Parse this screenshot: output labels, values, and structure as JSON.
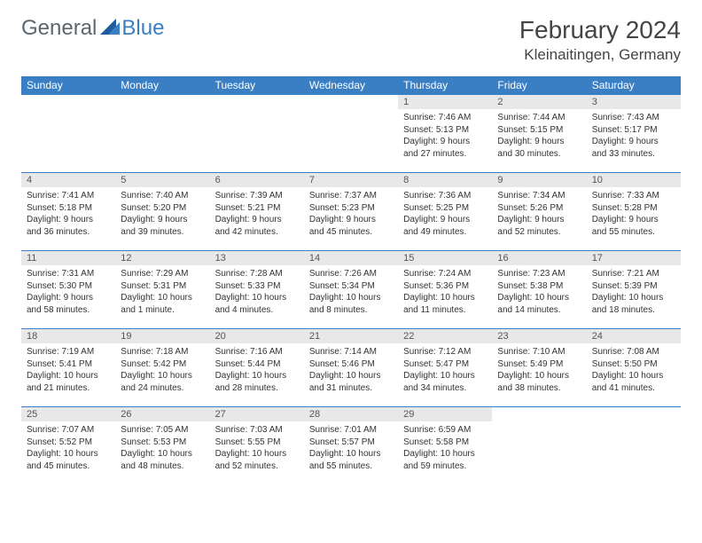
{
  "logo": {
    "text1": "General",
    "text2": "Blue"
  },
  "title": "February 2024",
  "location": "Kleinaitingen, Germany",
  "colors": {
    "header_bg": "#3a7fc4",
    "header_text": "#ffffff",
    "daynum_bg": "#e8e8e8",
    "border": "#3a7fc4",
    "logo_gray": "#5a6670",
    "logo_blue": "#3a7fc4"
  },
  "day_labels": [
    "Sunday",
    "Monday",
    "Tuesday",
    "Wednesday",
    "Thursday",
    "Friday",
    "Saturday"
  ],
  "weeks": [
    [
      {
        "num": "",
        "lines": []
      },
      {
        "num": "",
        "lines": []
      },
      {
        "num": "",
        "lines": []
      },
      {
        "num": "",
        "lines": []
      },
      {
        "num": "1",
        "lines": [
          "Sunrise: 7:46 AM",
          "Sunset: 5:13 PM",
          "Daylight: 9 hours",
          "and 27 minutes."
        ]
      },
      {
        "num": "2",
        "lines": [
          "Sunrise: 7:44 AM",
          "Sunset: 5:15 PM",
          "Daylight: 9 hours",
          "and 30 minutes."
        ]
      },
      {
        "num": "3",
        "lines": [
          "Sunrise: 7:43 AM",
          "Sunset: 5:17 PM",
          "Daylight: 9 hours",
          "and 33 minutes."
        ]
      }
    ],
    [
      {
        "num": "4",
        "lines": [
          "Sunrise: 7:41 AM",
          "Sunset: 5:18 PM",
          "Daylight: 9 hours",
          "and 36 minutes."
        ]
      },
      {
        "num": "5",
        "lines": [
          "Sunrise: 7:40 AM",
          "Sunset: 5:20 PM",
          "Daylight: 9 hours",
          "and 39 minutes."
        ]
      },
      {
        "num": "6",
        "lines": [
          "Sunrise: 7:39 AM",
          "Sunset: 5:21 PM",
          "Daylight: 9 hours",
          "and 42 minutes."
        ]
      },
      {
        "num": "7",
        "lines": [
          "Sunrise: 7:37 AM",
          "Sunset: 5:23 PM",
          "Daylight: 9 hours",
          "and 45 minutes."
        ]
      },
      {
        "num": "8",
        "lines": [
          "Sunrise: 7:36 AM",
          "Sunset: 5:25 PM",
          "Daylight: 9 hours",
          "and 49 minutes."
        ]
      },
      {
        "num": "9",
        "lines": [
          "Sunrise: 7:34 AM",
          "Sunset: 5:26 PM",
          "Daylight: 9 hours",
          "and 52 minutes."
        ]
      },
      {
        "num": "10",
        "lines": [
          "Sunrise: 7:33 AM",
          "Sunset: 5:28 PM",
          "Daylight: 9 hours",
          "and 55 minutes."
        ]
      }
    ],
    [
      {
        "num": "11",
        "lines": [
          "Sunrise: 7:31 AM",
          "Sunset: 5:30 PM",
          "Daylight: 9 hours",
          "and 58 minutes."
        ]
      },
      {
        "num": "12",
        "lines": [
          "Sunrise: 7:29 AM",
          "Sunset: 5:31 PM",
          "Daylight: 10 hours",
          "and 1 minute."
        ]
      },
      {
        "num": "13",
        "lines": [
          "Sunrise: 7:28 AM",
          "Sunset: 5:33 PM",
          "Daylight: 10 hours",
          "and 4 minutes."
        ]
      },
      {
        "num": "14",
        "lines": [
          "Sunrise: 7:26 AM",
          "Sunset: 5:34 PM",
          "Daylight: 10 hours",
          "and 8 minutes."
        ]
      },
      {
        "num": "15",
        "lines": [
          "Sunrise: 7:24 AM",
          "Sunset: 5:36 PM",
          "Daylight: 10 hours",
          "and 11 minutes."
        ]
      },
      {
        "num": "16",
        "lines": [
          "Sunrise: 7:23 AM",
          "Sunset: 5:38 PM",
          "Daylight: 10 hours",
          "and 14 minutes."
        ]
      },
      {
        "num": "17",
        "lines": [
          "Sunrise: 7:21 AM",
          "Sunset: 5:39 PM",
          "Daylight: 10 hours",
          "and 18 minutes."
        ]
      }
    ],
    [
      {
        "num": "18",
        "lines": [
          "Sunrise: 7:19 AM",
          "Sunset: 5:41 PM",
          "Daylight: 10 hours",
          "and 21 minutes."
        ]
      },
      {
        "num": "19",
        "lines": [
          "Sunrise: 7:18 AM",
          "Sunset: 5:42 PM",
          "Daylight: 10 hours",
          "and 24 minutes."
        ]
      },
      {
        "num": "20",
        "lines": [
          "Sunrise: 7:16 AM",
          "Sunset: 5:44 PM",
          "Daylight: 10 hours",
          "and 28 minutes."
        ]
      },
      {
        "num": "21",
        "lines": [
          "Sunrise: 7:14 AM",
          "Sunset: 5:46 PM",
          "Daylight: 10 hours",
          "and 31 minutes."
        ]
      },
      {
        "num": "22",
        "lines": [
          "Sunrise: 7:12 AM",
          "Sunset: 5:47 PM",
          "Daylight: 10 hours",
          "and 34 minutes."
        ]
      },
      {
        "num": "23",
        "lines": [
          "Sunrise: 7:10 AM",
          "Sunset: 5:49 PM",
          "Daylight: 10 hours",
          "and 38 minutes."
        ]
      },
      {
        "num": "24",
        "lines": [
          "Sunrise: 7:08 AM",
          "Sunset: 5:50 PM",
          "Daylight: 10 hours",
          "and 41 minutes."
        ]
      }
    ],
    [
      {
        "num": "25",
        "lines": [
          "Sunrise: 7:07 AM",
          "Sunset: 5:52 PM",
          "Daylight: 10 hours",
          "and 45 minutes."
        ]
      },
      {
        "num": "26",
        "lines": [
          "Sunrise: 7:05 AM",
          "Sunset: 5:53 PM",
          "Daylight: 10 hours",
          "and 48 minutes."
        ]
      },
      {
        "num": "27",
        "lines": [
          "Sunrise: 7:03 AM",
          "Sunset: 5:55 PM",
          "Daylight: 10 hours",
          "and 52 minutes."
        ]
      },
      {
        "num": "28",
        "lines": [
          "Sunrise: 7:01 AM",
          "Sunset: 5:57 PM",
          "Daylight: 10 hours",
          "and 55 minutes."
        ]
      },
      {
        "num": "29",
        "lines": [
          "Sunrise: 6:59 AM",
          "Sunset: 5:58 PM",
          "Daylight: 10 hours",
          "and 59 minutes."
        ]
      },
      {
        "num": "",
        "lines": []
      },
      {
        "num": "",
        "lines": []
      }
    ]
  ]
}
